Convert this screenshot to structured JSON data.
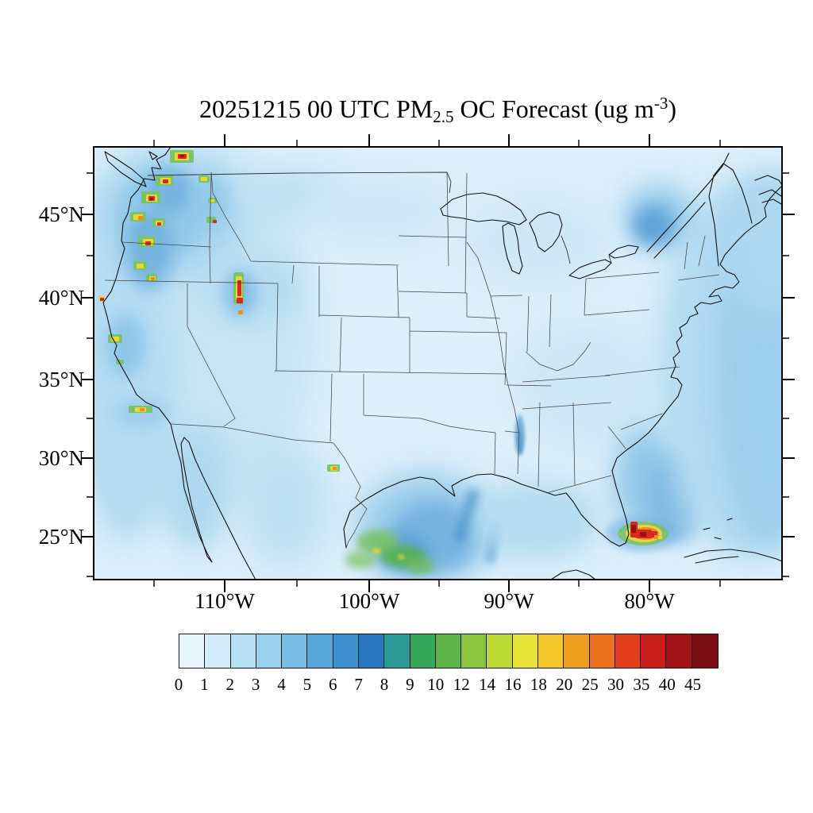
{
  "title": {
    "prefix": "20251215 00 UTC PM",
    "sub": "2.5",
    "mid": " OC Forecast (ug m",
    "sup": "-3",
    "suffix": ")"
  },
  "axes": {
    "lat_labels": [
      {
        "label": "45°N"
      },
      {
        "label": "40°N"
      },
      {
        "label": "35°N"
      },
      {
        "label": "30°N"
      },
      {
        "label": "25°N"
      }
    ],
    "lon_labels": [
      {
        "label": "110°W"
      },
      {
        "label": "100°W"
      },
      {
        "label": "90°W"
      },
      {
        "label": "80°W"
      }
    ]
  },
  "colorbar": {
    "labels": [
      "0",
      "1",
      "2",
      "3",
      "4",
      "5",
      "6",
      "7",
      "8",
      "9",
      "10",
      "12",
      "14",
      "16",
      "18",
      "20",
      "25",
      "30",
      "35",
      "40",
      "45"
    ],
    "colors": [
      "#e7f5fc",
      "#d2ecf9",
      "#b8e0f4",
      "#99d0ed",
      "#79bde4",
      "#59a7da",
      "#3e90cf",
      "#2a77c0",
      "#2b9a94",
      "#35a85c",
      "#5fb54a",
      "#8cc63f",
      "#bcd936",
      "#e8e337",
      "#f4c62c",
      "#f0a020",
      "#ea731b",
      "#e33f1b",
      "#cb1f1c",
      "#a31419",
      "#7a0e13"
    ]
  },
  "map": {
    "background_color": "#dceffa",
    "coastline_color": "#111111",
    "state_line_color": "#444444",
    "hotspot_red": "#d62a1e",
    "hotspot_orange": "#f08c21",
    "hotspot_yellow": "#e6d83a",
    "hotspot_green": "#7cc26a"
  }
}
